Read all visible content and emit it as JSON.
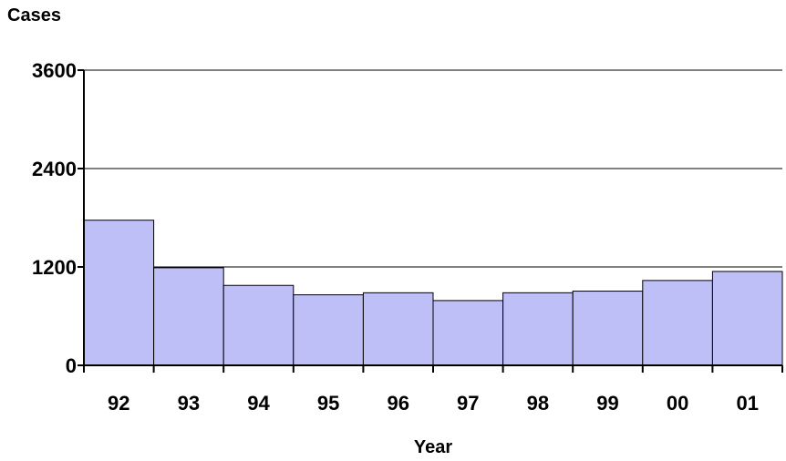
{
  "chart_data": {
    "type": "bar",
    "title": "",
    "ylabel": "Cases",
    "xlabel": "Year",
    "categories": [
      "92",
      "93",
      "94",
      "95",
      "96",
      "97",
      "98",
      "99",
      "00",
      "01"
    ],
    "values": [
      1770,
      1190,
      975,
      860,
      885,
      790,
      885,
      905,
      1035,
      1145
    ],
    "ylim": [
      0,
      3600
    ],
    "yticks": [
      0,
      1200,
      2400,
      3600
    ],
    "ytick_labels": [
      "0",
      "1200",
      "2400",
      "3600"
    ],
    "grid": true,
    "legend": "none",
    "bar_color": "#bfbff8",
    "bar_edge_color": "#000000"
  }
}
